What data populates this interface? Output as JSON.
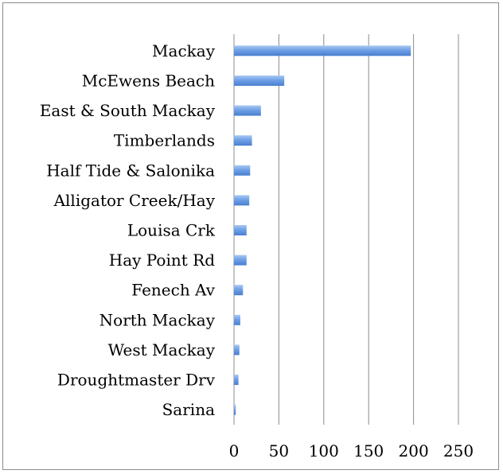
{
  "chart_data": {
    "type": "bar",
    "orientation": "horizontal",
    "title": "",
    "xlabel": "",
    "ylabel": "",
    "categories": [
      "Mackay",
      "McEwens Beach",
      "East & South  Mackay",
      "Timberlands",
      "Half Tide & Salonika",
      "Alligator Creek/Hay",
      "Louisa Crk",
      "Hay Point Rd",
      "Fenech Av",
      "North Mackay",
      "West Mackay",
      "Droughtmaster Drv",
      "Sarina"
    ],
    "values": [
      197,
      56,
      30,
      20,
      18,
      17,
      14,
      14,
      10,
      7,
      6,
      5,
      2
    ],
    "xlim": [
      0,
      250
    ],
    "xticks": [
      "0",
      "50",
      "100",
      "150",
      "200",
      "250"
    ],
    "grid": true,
    "legend": "none",
    "colors": {
      "bar": "#6fa0e6",
      "bar_dark": "#4a7fcf",
      "bar_light": "#a9c8f3",
      "grid": "#8c8c8c",
      "border": "#8c8c8c"
    }
  }
}
